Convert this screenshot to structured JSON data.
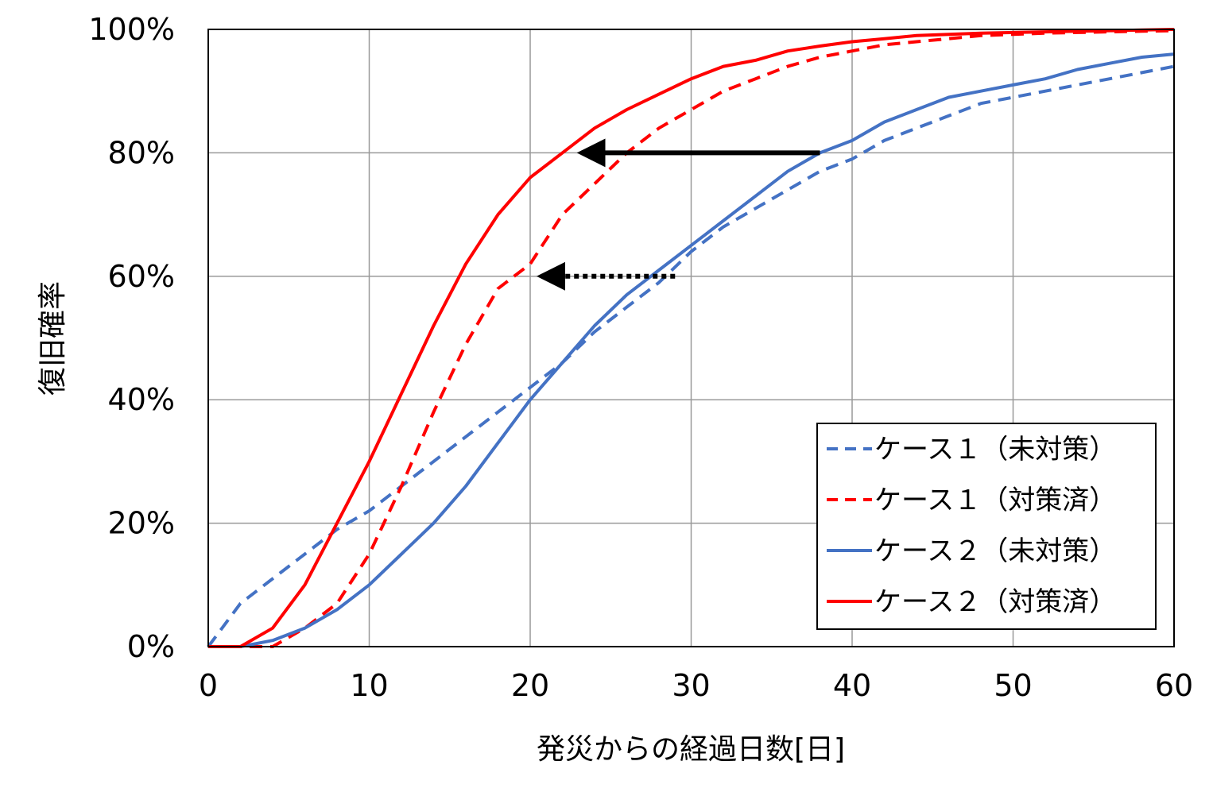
{
  "chart_data": {
    "type": "line",
    "xlabel": "発災からの経過日数[日]",
    "ylabel": "復旧確率",
    "xlim": [
      0,
      60
    ],
    "ylim": [
      0,
      100
    ],
    "x_ticks": [
      0,
      10,
      20,
      30,
      40,
      50,
      60
    ],
    "x_tick_labels": [
      "0",
      "10",
      "20",
      "30",
      "40",
      "50",
      "60"
    ],
    "y_ticks": [
      0,
      20,
      40,
      60,
      80,
      100
    ],
    "y_tick_labels": [
      "0%",
      "20%",
      "40%",
      "60%",
      "80%",
      "100%"
    ],
    "grid": true,
    "legend_position": "bottom-right",
    "series": [
      {
        "name": "ケース１（未対策）",
        "color": "#4472C4",
        "style": "dashed",
        "x": [
          0,
          2,
          4,
          6,
          8,
          10,
          12,
          14,
          16,
          18,
          20,
          22,
          24,
          26,
          28,
          30,
          32,
          34,
          36,
          38,
          40,
          42,
          44,
          46,
          48,
          50,
          52,
          54,
          56,
          58,
          60
        ],
        "y": [
          0,
          7,
          11,
          15,
          19,
          22,
          26,
          30,
          34,
          38,
          42,
          46,
          51,
          55,
          59,
          64,
          68,
          71,
          74,
          77,
          79,
          82,
          84,
          86,
          88,
          89,
          90,
          91,
          92,
          93,
          94
        ]
      },
      {
        "name": "ケース１（対策済）",
        "color": "#FF0000",
        "style": "dashed",
        "x": [
          0,
          2,
          4,
          6,
          8,
          10,
          12,
          14,
          16,
          18,
          20,
          22,
          24,
          26,
          28,
          30,
          32,
          34,
          36,
          38,
          40,
          42,
          44,
          46,
          48,
          50,
          52,
          54,
          56,
          58,
          60
        ],
        "y": [
          0,
          0,
          0,
          3,
          7,
          15,
          26,
          38,
          49,
          58,
          62,
          70,
          75,
          80,
          84,
          87,
          90,
          92,
          94,
          95.5,
          96.5,
          97.5,
          98,
          98.5,
          99,
          99.2,
          99.4,
          99.5,
          99.6,
          99.7,
          99.8
        ]
      },
      {
        "name": "ケース２（未対策）",
        "color": "#4472C4",
        "style": "solid",
        "x": [
          0,
          2,
          4,
          6,
          8,
          10,
          12,
          14,
          16,
          18,
          20,
          22,
          24,
          26,
          28,
          30,
          32,
          34,
          36,
          38,
          40,
          42,
          44,
          46,
          48,
          50,
          52,
          54,
          56,
          58,
          60
        ],
        "y": [
          0,
          0,
          1,
          3,
          6,
          10,
          15,
          20,
          26,
          33,
          40,
          46,
          52,
          57,
          61,
          65,
          69,
          73,
          77,
          80,
          82,
          85,
          87,
          89,
          90,
          91,
          92,
          93.5,
          94.5,
          95.5,
          96
        ]
      },
      {
        "name": "ケース２（対策済）",
        "color": "#FF0000",
        "style": "solid",
        "x": [
          0,
          2,
          4,
          6,
          8,
          10,
          12,
          14,
          16,
          18,
          20,
          22,
          24,
          26,
          28,
          30,
          32,
          34,
          36,
          38,
          40,
          42,
          44,
          46,
          48,
          50,
          52,
          54,
          56,
          58,
          60
        ],
        "y": [
          0,
          0,
          3,
          10,
          20,
          30,
          41,
          52,
          62,
          70,
          76,
          80,
          84,
          87,
          89.5,
          92,
          94,
          95,
          96.5,
          97.3,
          98,
          98.5,
          99,
          99.2,
          99.4,
          99.5,
          99.6,
          99.7,
          99.8,
          99.9,
          100
        ]
      }
    ],
    "annotations": [
      {
        "type": "arrow",
        "style": "solid",
        "color": "#000000",
        "from": [
          38,
          80
        ],
        "to": [
          22.5,
          80
        ]
      },
      {
        "type": "arrow",
        "style": "dotted",
        "color": "#000000",
        "from": [
          29,
          60
        ],
        "to": [
          20,
          60
        ]
      }
    ]
  }
}
